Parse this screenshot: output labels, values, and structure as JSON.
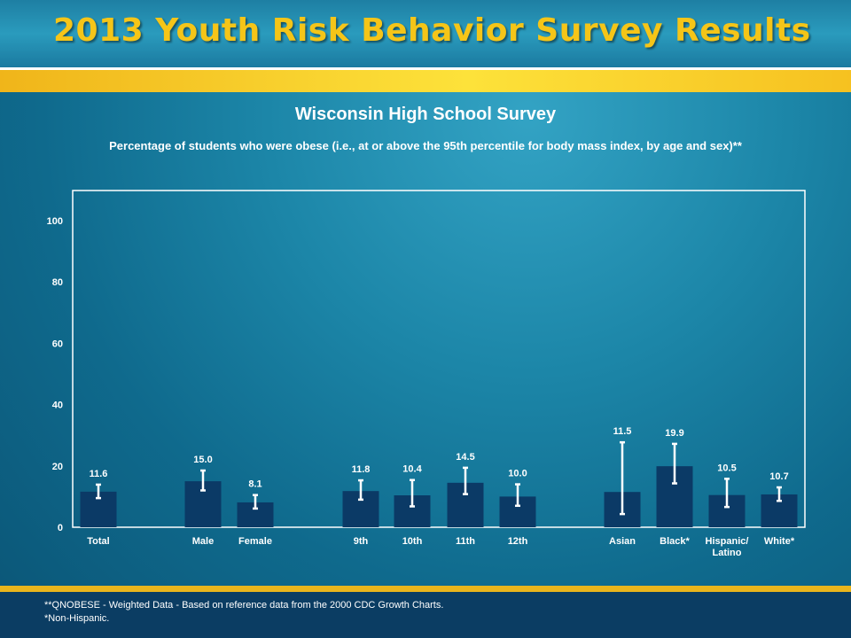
{
  "header": {
    "title": "2013 Youth Risk Behavior Survey Results"
  },
  "colors": {
    "title_text": "#f5c518",
    "bar": "#0b3a66",
    "error_bar": "#ffffff",
    "plot_border": "#ffffff"
  },
  "chart_data": {
    "type": "bar",
    "title": "Wisconsin High School Survey",
    "subtitle": "Percentage of students who were obese (i.e., at or above the 95th percentile for body mass index, by age and sex)**",
    "xlabel": "",
    "ylabel": "",
    "ylim": [
      0,
      100
    ],
    "yticks": [
      0,
      20,
      40,
      60,
      80,
      100
    ],
    "grid": false,
    "categories": [
      "Total",
      "Male",
      "Female",
      "9th",
      "10th",
      "11th",
      "12th",
      "Asian",
      "Black*",
      "Hispanic/ Latino",
      "White*"
    ],
    "values": [
      11.6,
      15.0,
      8.1,
      11.8,
      10.4,
      14.5,
      10.0,
      11.5,
      19.9,
      10.5,
      10.7
    ],
    "value_labels": [
      "11.6",
      "15.0",
      "8.1",
      "11.8",
      "10.4",
      "14.5",
      "10.0",
      "11.5",
      "19.9",
      "10.5",
      "10.7"
    ],
    "ci_low": [
      9.5,
      12.0,
      6.1,
      9.0,
      6.8,
      10.8,
      7.0,
      4.3,
      14.3,
      6.6,
      8.6
    ],
    "ci_high": [
      13.9,
      18.5,
      10.5,
      15.3,
      15.4,
      19.4,
      14.0,
      27.7,
      27.2,
      15.8,
      13.0
    ]
  },
  "footer": {
    "note1": "**QNOBESE - Weighted Data - Based on reference data from the 2000 CDC Growth Charts.",
    "note2": "*Non-Hispanic."
  }
}
